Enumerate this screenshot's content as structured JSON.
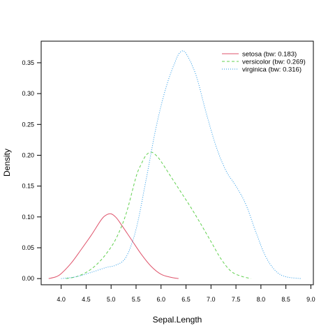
{
  "chart_data": {
    "type": "line",
    "title": "",
    "xlabel": "Sepal.Length",
    "ylabel": "Density",
    "xlim": [
      3.6,
      9.05
    ],
    "ylim": [
      -0.01,
      0.385
    ],
    "grid": false,
    "legend_position": "top-right",
    "x_ticks": [
      4.0,
      4.5,
      5.0,
      5.5,
      6.0,
      6.5,
      7.0,
      7.5,
      8.0,
      8.5,
      9.0
    ],
    "x_tick_labels": [
      "4.0",
      "4.5",
      "5.0",
      "5.5",
      "6.0",
      "6.5",
      "7.0",
      "7.5",
      "8.0",
      "8.5",
      "9.0"
    ],
    "y_ticks": [
      0.0,
      0.05,
      0.1,
      0.15,
      0.2,
      0.25,
      0.3,
      0.35
    ],
    "y_tick_labels": [
      "0.00",
      "0.05",
      "0.10",
      "0.15",
      "0.20",
      "0.25",
      "0.30",
      "0.35"
    ],
    "series": [
      {
        "name": "setosa (bw: 0.183)",
        "color": "#df536b",
        "dash": "solid",
        "x": [
          3.75,
          3.9,
          4.0,
          4.2,
          4.4,
          4.6,
          4.8,
          4.9,
          5.0,
          5.1,
          5.2,
          5.4,
          5.6,
          5.8,
          6.0,
          6.2,
          6.35
        ],
        "y": [
          0.0,
          0.003,
          0.008,
          0.025,
          0.047,
          0.07,
          0.095,
          0.103,
          0.105,
          0.099,
          0.088,
          0.064,
          0.04,
          0.02,
          0.007,
          0.002,
          0.0
        ]
      },
      {
        "name": "versicolor (bw: 0.269)",
        "color": "#61d04f",
        "dash": "dashed",
        "x": [
          4.1,
          4.3,
          4.5,
          4.7,
          4.9,
          5.1,
          5.3,
          5.5,
          5.6,
          5.7,
          5.8,
          5.9,
          6.0,
          6.2,
          6.4,
          6.6,
          6.8,
          7.0,
          7.2,
          7.4,
          7.6,
          7.8
        ],
        "y": [
          0.0,
          0.003,
          0.01,
          0.022,
          0.04,
          0.065,
          0.105,
          0.165,
          0.185,
          0.2,
          0.205,
          0.2,
          0.19,
          0.165,
          0.14,
          0.115,
          0.088,
          0.06,
          0.032,
          0.012,
          0.004,
          0.0
        ]
      },
      {
        "name": "virginica (bw: 0.316)",
        "color": "#2297e6",
        "dash": "dotted",
        "x": [
          4.0,
          4.3,
          4.6,
          4.9,
          5.1,
          5.3,
          5.5,
          5.7,
          5.9,
          6.1,
          6.3,
          6.4,
          6.5,
          6.7,
          6.9,
          7.1,
          7.3,
          7.5,
          7.7,
          7.9,
          8.1,
          8.3,
          8.5,
          8.8
        ],
        "y": [
          0.0,
          0.003,
          0.01,
          0.018,
          0.022,
          0.035,
          0.08,
          0.16,
          0.245,
          0.31,
          0.355,
          0.368,
          0.365,
          0.33,
          0.27,
          0.215,
          0.175,
          0.15,
          0.12,
          0.075,
          0.035,
          0.012,
          0.003,
          0.0
        ]
      }
    ]
  }
}
